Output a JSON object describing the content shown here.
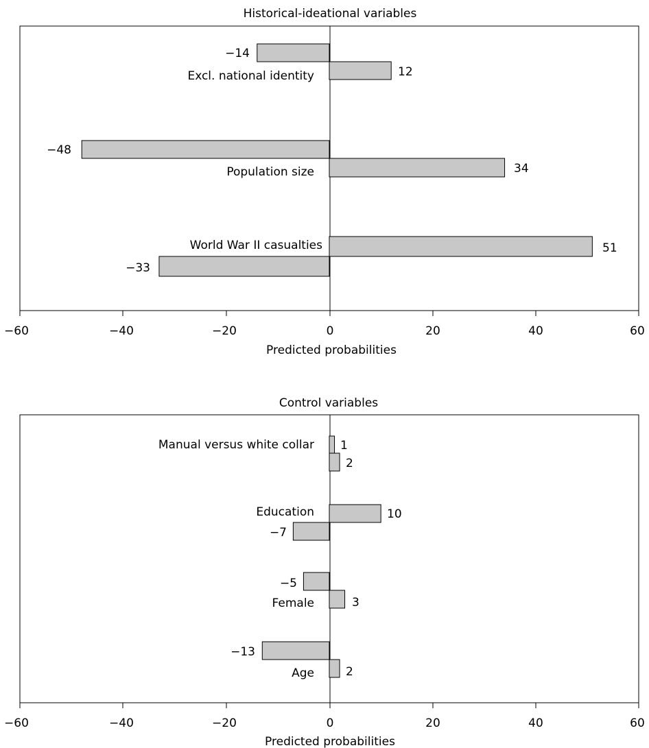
{
  "colors": {
    "bar_fill": "#c8c8c8",
    "bar_stroke": "#000000",
    "frame": "#000000",
    "text": "#000000"
  },
  "chart_data": [
    {
      "type": "bar",
      "orientation": "horizontal",
      "title": "Historical-ideational variables",
      "xlabel": "Predicted probabilities",
      "ylabel": "",
      "xlim": [
        -60,
        60
      ],
      "xticks": [
        -60,
        -40,
        -20,
        0,
        20,
        40,
        60
      ],
      "xtick_labels": [
        "−60",
        "−40",
        "−20",
        "0",
        "20",
        "40",
        "60"
      ],
      "grid": false,
      "legend": "none",
      "groups": [
        {
          "category": "Excl. national identity",
          "bars": [
            {
              "value": -14,
              "label": "−14"
            },
            {
              "value": 12,
              "label": "12"
            }
          ]
        },
        {
          "category": "Population size",
          "bars": [
            {
              "value": -48,
              "label": "−48"
            },
            {
              "value": 34,
              "label": "34"
            }
          ]
        },
        {
          "category": "World War II casualties",
          "bars": [
            {
              "value": 51,
              "label": "51"
            },
            {
              "value": -33,
              "label": "−33"
            }
          ]
        }
      ]
    },
    {
      "type": "bar",
      "orientation": "horizontal",
      "title": "Control variables",
      "xlabel": "Predicted probabilities",
      "ylabel": "",
      "xlim": [
        -60,
        60
      ],
      "xticks": [
        -60,
        -40,
        -20,
        0,
        20,
        40,
        60
      ],
      "xtick_labels": [
        "−60",
        "−40",
        "−20",
        "0",
        "20",
        "40",
        "60"
      ],
      "grid": false,
      "legend": "none",
      "groups": [
        {
          "category": "Manual versus white collar",
          "bars": [
            {
              "value": 1,
              "label": "1"
            },
            {
              "value": 2,
              "label": "2"
            }
          ]
        },
        {
          "category": "Education",
          "bars": [
            {
              "value": 10,
              "label": "10"
            },
            {
              "value": -7,
              "label": "−7"
            }
          ]
        },
        {
          "category": "Female",
          "bars": [
            {
              "value": -5,
              "label": "−5"
            },
            {
              "value": 3,
              "label": "3"
            }
          ]
        },
        {
          "category": "Age",
          "bars": [
            {
              "value": -13,
              "label": "−13"
            },
            {
              "value": 2,
              "label": "2"
            }
          ]
        }
      ]
    }
  ]
}
